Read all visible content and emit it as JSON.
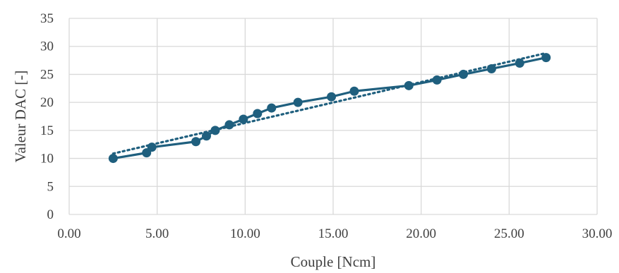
{
  "chart_data": {
    "type": "scatter",
    "title": "",
    "title_partially_visible": true,
    "xlabel": "Couple [Ncm]",
    "ylabel": "Valeur DAC [-]",
    "xlim": [
      0,
      30
    ],
    "ylim": [
      0,
      35
    ],
    "x_ticks": [
      "0.00",
      "5.00",
      "10.00",
      "15.00",
      "20.00",
      "25.00",
      "30.00"
    ],
    "y_ticks": [
      "0",
      "5",
      "10",
      "15",
      "20",
      "25",
      "30",
      "35"
    ],
    "grid": true,
    "legend": "none",
    "series": [
      {
        "style": "line-with-markers",
        "color": "#1f5f7e",
        "points": [
          {
            "x": 2.5,
            "y": 10
          },
          {
            "x": 4.4,
            "y": 11
          },
          {
            "x": 4.7,
            "y": 12
          },
          {
            "x": 7.2,
            "y": 13
          },
          {
            "x": 7.8,
            "y": 14
          },
          {
            "x": 8.3,
            "y": 15
          },
          {
            "x": 9.1,
            "y": 16
          },
          {
            "x": 9.9,
            "y": 17
          },
          {
            "x": 10.7,
            "y": 18
          },
          {
            "x": 11.5,
            "y": 19
          },
          {
            "x": 13.0,
            "y": 20
          },
          {
            "x": 14.9,
            "y": 21
          },
          {
            "x": 16.2,
            "y": 22
          },
          {
            "x": 19.3,
            "y": 23
          },
          {
            "x": 20.9,
            "y": 24
          },
          {
            "x": 22.4,
            "y": 25
          },
          {
            "x": 24.0,
            "y": 26
          },
          {
            "x": 25.6,
            "y": 27
          },
          {
            "x": 27.1,
            "y": 28
          }
        ]
      }
    ],
    "trendline": {
      "style": "dotted",
      "type": "linear",
      "color": "#1f5f7e",
      "x_range": [
        2.5,
        27.1
      ]
    }
  }
}
